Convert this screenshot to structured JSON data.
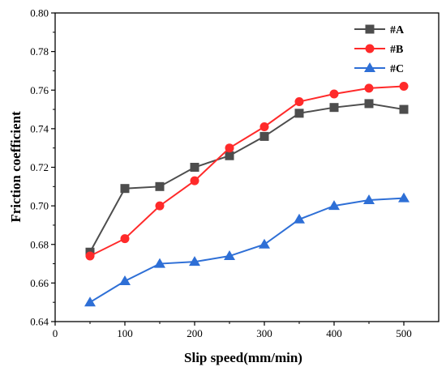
{
  "chart_data": {
    "type": "line",
    "title": "",
    "xlabel": "Slip speed(mm/min)",
    "ylabel": "Friction coefficient",
    "xlim": [
      0,
      550
    ],
    "ylim": [
      0.64,
      0.8
    ],
    "xticks": [
      "0",
      "100",
      "200",
      "300",
      "400",
      "500"
    ],
    "yticks": [
      "0.64",
      "0.66",
      "0.68",
      "0.70",
      "0.72",
      "0.74",
      "0.76",
      "0.78",
      "0.80"
    ],
    "x": [
      50,
      100,
      150,
      200,
      250,
      300,
      350,
      400,
      450,
      500
    ],
    "series": [
      {
        "name": "#A",
        "marker": "square",
        "color": "#4d4d4d",
        "values": [
          0.676,
          0.709,
          0.71,
          0.72,
          0.726,
          0.736,
          0.748,
          0.751,
          0.753,
          0.75
        ]
      },
      {
        "name": "#B",
        "marker": "circle",
        "color": "#ff2a2a",
        "values": [
          0.674,
          0.683,
          0.7,
          0.713,
          0.73,
          0.741,
          0.754,
          0.758,
          0.761,
          0.762
        ]
      },
      {
        "name": "#C",
        "marker": "triangle",
        "color": "#2e6fd6",
        "values": [
          0.65,
          0.661,
          0.67,
          0.671,
          0.674,
          0.68,
          0.693,
          0.7,
          0.703,
          0.704
        ]
      }
    ],
    "legend": "top-right",
    "grid": false
  }
}
